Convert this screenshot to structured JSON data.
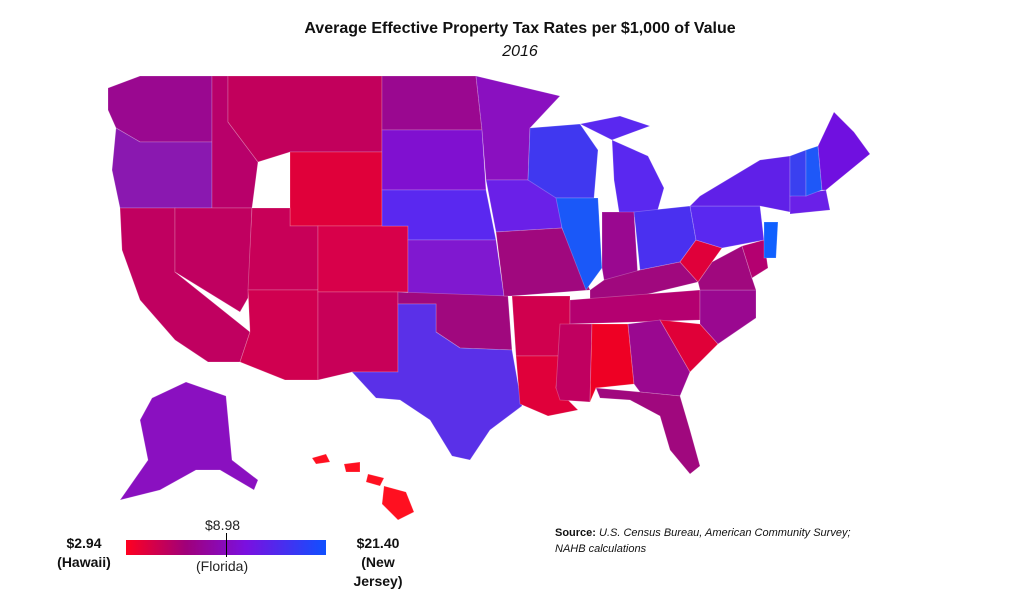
{
  "title": "Average Effective Property Tax Rates per $1,000 of Value",
  "subtitle": "2016",
  "legend": {
    "min_value": "$2.94",
    "min_label": "(Hawaii)",
    "mid_value": "$8.98",
    "mid_label": "(Florida)",
    "max_value": "$21.40",
    "max_label": "(New Jersey)"
  },
  "source": {
    "label": "Source",
    "text": "U.S. Census Bureau, American Community Survey; NAHB calculations"
  },
  "colors": {
    "red": "#e8002a",
    "crimson": "#c8005a",
    "magenta": "#a0008a",
    "purple": "#8a10c0",
    "violet": "#6a20e8",
    "blue": "#2050f0"
  }
}
